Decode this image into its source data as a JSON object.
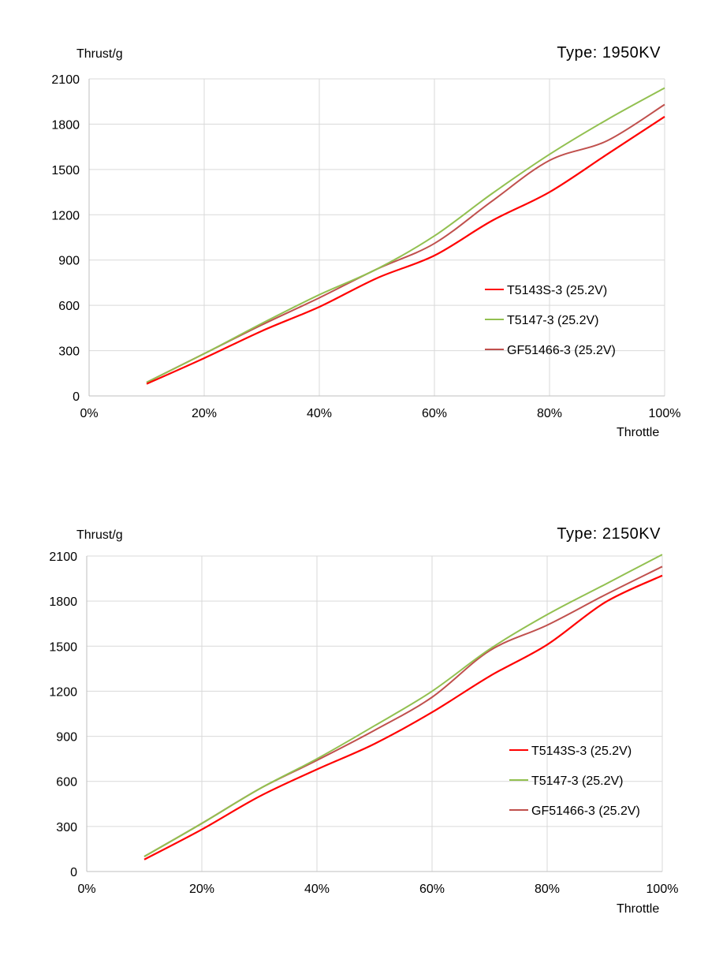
{
  "chart_data": [
    {
      "type": "line",
      "ylabel": "Thrust/g",
      "xlabel": "Throttle",
      "annotation": "Type:  1950KV",
      "x": [
        10,
        20,
        30,
        40,
        50,
        60,
        70,
        80,
        90,
        100
      ],
      "xlim": [
        0,
        100
      ],
      "xticks": [
        "0%",
        "20%",
        "40%",
        "60%",
        "80%",
        "100%"
      ],
      "ylim": [
        0,
        2100
      ],
      "yticks": [
        "0",
        "300",
        "600",
        "900",
        "1200",
        "1500",
        "1800",
        "2100"
      ],
      "grid": true,
      "legend_position": "right-middle",
      "series": [
        {
          "name": "T5143S-3 (25.2V)",
          "color": "#ff0000",
          "values": [
            80,
            250,
            430,
            590,
            780,
            930,
            1160,
            1350,
            1600,
            1850
          ]
        },
        {
          "name": "T5147-3 (25.2V)",
          "color": "#92c050",
          "values": [
            90,
            280,
            480,
            670,
            840,
            1060,
            1340,
            1600,
            1830,
            2040
          ]
        },
        {
          "name": "GF51466-3 (25.2V)",
          "color": "#c0504d",
          "values": [
            90,
            280,
            470,
            650,
            840,
            1010,
            1290,
            1560,
            1690,
            1930
          ]
        }
      ]
    },
    {
      "type": "line",
      "ylabel": "Thrust/g",
      "xlabel": "Throttle",
      "annotation": "Type:  2150KV",
      "x": [
        10,
        20,
        30,
        40,
        50,
        60,
        70,
        80,
        90,
        100
      ],
      "xlim": [
        0,
        100
      ],
      "xticks": [
        "0%",
        "20%",
        "40%",
        "60%",
        "80%",
        "100%"
      ],
      "ylim": [
        0,
        2100
      ],
      "yticks": [
        "0",
        "300",
        "600",
        "900",
        "1200",
        "1500",
        "1800",
        "2100"
      ],
      "grid": true,
      "legend_position": "right-middle",
      "series": [
        {
          "name": "T5143S-3 (25.2V)",
          "color": "#ff0000",
          "values": [
            80,
            280,
            500,
            680,
            850,
            1060,
            1300,
            1510,
            1790,
            1970
          ]
        },
        {
          "name": "T5147-3 (25.2V)",
          "color": "#92c050",
          "values": [
            100,
            320,
            550,
            750,
            970,
            1200,
            1480,
            1710,
            1910,
            2110
          ]
        },
        {
          "name": "GF51466-3 (25.2V)",
          "color": "#c0504d",
          "values": [
            100,
            320,
            550,
            740,
            940,
            1160,
            1470,
            1640,
            1840,
            2030
          ]
        }
      ]
    }
  ]
}
